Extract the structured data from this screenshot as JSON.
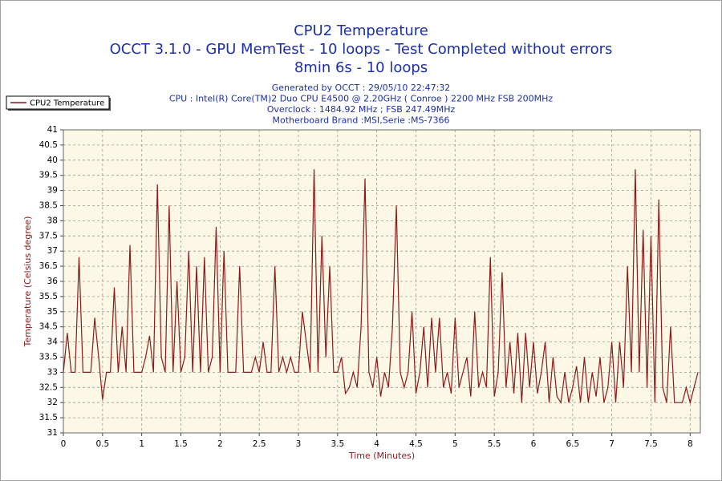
{
  "chart_data": {
    "type": "line",
    "title": [
      "CPU2 Temperature",
      "OCCT 3.1.0 - GPU MemTest - 10 loops - Test Completed without errors",
      "8min 6s - 10 loops"
    ],
    "subtitle": [
      "Generated by OCCT : 29/05/10 22:47:32",
      "CPU : Intel(R) Core(TM)2 Duo CPU E4500 @ 2.20GHz ( Conroe ) 2200 MHz FSB 200MHz",
      "Overclock : 1484.92 MHz ; FSB 247.49MHz",
      "Motherboard Brand :MSI,Serie :MS-7366"
    ],
    "xlabel": "Time (Minutes)",
    "ylabel": "Temperature (Celsius degree)",
    "legend": "top-left",
    "grid": true,
    "xlim": [
      0,
      8.13
    ],
    "ylim": [
      31,
      41
    ],
    "xticks": [
      0,
      0.5,
      1,
      1.5,
      2,
      2.5,
      3,
      3.5,
      4,
      4.5,
      5,
      5.5,
      6,
      6.5,
      7,
      7.5,
      8
    ],
    "yticks": [
      31,
      31.5,
      32,
      32.5,
      33,
      33.5,
      34,
      34.5,
      35,
      35.5,
      36,
      36.5,
      37,
      37.5,
      38,
      38.5,
      39,
      39.5,
      40,
      40.5,
      41
    ],
    "x": [
      0,
      0.05,
      0.1,
      0.15,
      0.2,
      0.25,
      0.3,
      0.35,
      0.4,
      0.45,
      0.5,
      0.55,
      0.6,
      0.65,
      0.7,
      0.75,
      0.8,
      0.85,
      0.9,
      0.95,
      1,
      1.05,
      1.1,
      1.15,
      1.2,
      1.25,
      1.3,
      1.35,
      1.4,
      1.45,
      1.5,
      1.55,
      1.6,
      1.65,
      1.7,
      1.75,
      1.8,
      1.85,
      1.9,
      1.95,
      2,
      2.05,
      2.1,
      2.15,
      2.2,
      2.25,
      2.3,
      2.35,
      2.4,
      2.45,
      2.5,
      2.55,
      2.6,
      2.65,
      2.7,
      2.75,
      2.8,
      2.85,
      2.9,
      2.95,
      3,
      3.05,
      3.1,
      3.15,
      3.2,
      3.25,
      3.3,
      3.35,
      3.4,
      3.45,
      3.5,
      3.55,
      3.6,
      3.65,
      3.7,
      3.75,
      3.8,
      3.85,
      3.9,
      3.95,
      4,
      4.05,
      4.1,
      4.15,
      4.2,
      4.25,
      4.3,
      4.35,
      4.4,
      4.45,
      4.5,
      4.55,
      4.6,
      4.65,
      4.7,
      4.75,
      4.8,
      4.85,
      4.9,
      4.95,
      5,
      5.05,
      5.1,
      5.15,
      5.2,
      5.25,
      5.3,
      5.35,
      5.4,
      5.45,
      5.5,
      5.55,
      5.6,
      5.65,
      5.7,
      5.75,
      5.8,
      5.85,
      5.9,
      5.95,
      6,
      6.05,
      6.1,
      6.15,
      6.2,
      6.25,
      6.3,
      6.35,
      6.4,
      6.45,
      6.5,
      6.55,
      6.6,
      6.65,
      6.7,
      6.75,
      6.8,
      6.85,
      6.9,
      6.95,
      7,
      7.05,
      7.1,
      7.15,
      7.2,
      7.25,
      7.3,
      7.35,
      7.4,
      7.45,
      7.5,
      7.55,
      7.6,
      7.65,
      7.7,
      7.75,
      7.8,
      7.85,
      7.9,
      7.95,
      8,
      8.05,
      8.1
    ],
    "series": [
      {
        "name": "CPU2 Temperature",
        "color": "#8b1a1a",
        "values": [
          33,
          34.3,
          33,
          33,
          36.8,
          33,
          33,
          33,
          34.8,
          33.5,
          32.1,
          33,
          33,
          35.8,
          33,
          34.5,
          33,
          37.2,
          33,
          33,
          33,
          33.5,
          34.2,
          33,
          39.2,
          33.5,
          33,
          38.5,
          33,
          36,
          33,
          33.5,
          37,
          33,
          36.5,
          33,
          36.8,
          33,
          33.5,
          37.8,
          33,
          37,
          33,
          33,
          33,
          36.5,
          33,
          33,
          33,
          33.5,
          33,
          34,
          33,
          33,
          36.5,
          33,
          33.5,
          33,
          33.5,
          33,
          33,
          35,
          34,
          33,
          39.7,
          33,
          37.5,
          33.5,
          36.5,
          33,
          33,
          33.5,
          32.3,
          32.5,
          33,
          32.5,
          34.5,
          39.4,
          33,
          32.5,
          33.5,
          32.2,
          33,
          32.5,
          34.5,
          38.5,
          33,
          32.5,
          33,
          35,
          32.3,
          33,
          34.5,
          32.5,
          34.8,
          33,
          34.8,
          32.5,
          33,
          32.3,
          34.8,
          32.5,
          33,
          33.5,
          32.2,
          35,
          32.5,
          33,
          32.5,
          36.8,
          32.2,
          33,
          36.3,
          32.5,
          34,
          32.3,
          34.3,
          32,
          34.3,
          32.5,
          34,
          32.3,
          33,
          34,
          32,
          33.5,
          32.2,
          32,
          33,
          32,
          32.5,
          33.2,
          32,
          33.5,
          32,
          33,
          32.2,
          33.5,
          32,
          32.5,
          34,
          32,
          34,
          32.5,
          36.5,
          33,
          39.7,
          33,
          37.7,
          32.5,
          37.5,
          32,
          38.7,
          32.5,
          32,
          34.5,
          32,
          32,
          32,
          32.5,
          32,
          32.5,
          33
        ]
      }
    ]
  }
}
